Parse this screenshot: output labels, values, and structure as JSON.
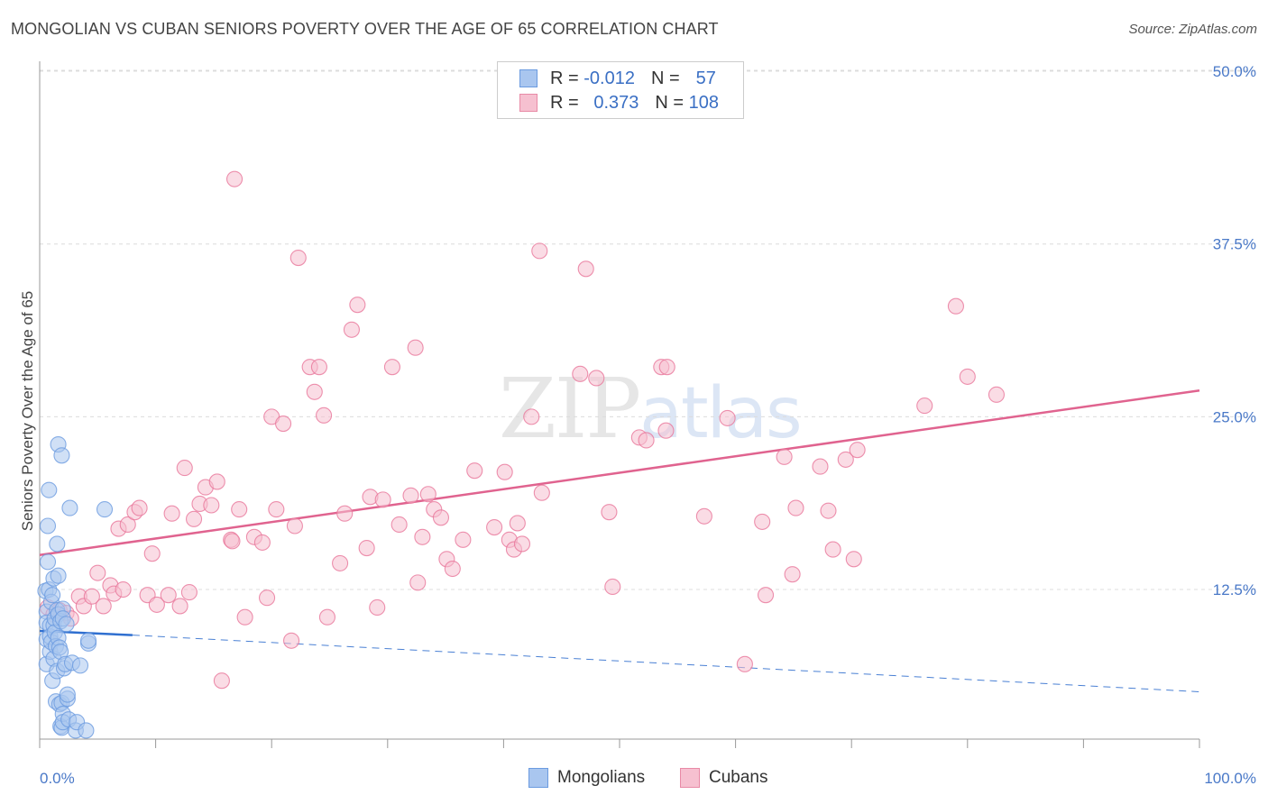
{
  "title": "MONGOLIAN VS CUBAN SENIORS POVERTY OVER THE AGE OF 65 CORRELATION CHART",
  "source": "Source: ZipAtlas.com",
  "watermark": {
    "zip": "ZIP",
    "atlas": "atlas"
  },
  "legend": {
    "rows": [
      {
        "r_label": "R =",
        "r_value": "-0.012",
        "n_label": "N =",
        "n_value": "57",
        "color": "#a9c6ef",
        "border": "#6b9be0"
      },
      {
        "r_label": "R =",
        "r_value": "0.373",
        "n_label": "N =",
        "n_value": "108",
        "color": "#f6c0d0",
        "border": "#e88aa6"
      }
    ]
  },
  "bottom_legend": [
    {
      "label": "Mongolians",
      "color": "#a9c6ef",
      "border": "#6b9be0"
    },
    {
      "label": "Cubans",
      "color": "#f6c0d0",
      "border": "#e88aa6"
    }
  ],
  "chart_data": {
    "type": "scatter",
    "title": "MONGOLIAN VS CUBAN SENIORS POVERTY OVER THE AGE OF 65 CORRELATION CHART",
    "xlabel": "",
    "ylabel": "Seniors Poverty Over the Age of 65",
    "xlim": [
      0,
      100
    ],
    "ylim": [
      0,
      52
    ],
    "x_tick_labels": [
      "0.0%",
      "100.0%"
    ],
    "y_ticks": [
      12.5,
      25.0,
      37.5,
      50.0
    ],
    "y_tick_labels": [
      "12.5%",
      "25.0%",
      "37.5%",
      "50.0%"
    ],
    "grid": true,
    "series": [
      {
        "name": "Mongolians",
        "color": "#6b9be0",
        "fill": "#a9c6ef",
        "trend": {
          "x": [
            0,
            8,
            100
          ],
          "y": [
            9.5,
            9.2,
            5.1
          ],
          "solid_until": 8
        },
        "points": [
          [
            0.5,
            12.4
          ],
          [
            0.6,
            10.9
          ],
          [
            0.6,
            10.1
          ],
          [
            0.6,
            8.9
          ],
          [
            0.6,
            7.1
          ],
          [
            0.7,
            14.5
          ],
          [
            0.7,
            17.1
          ],
          [
            0.8,
            19.7
          ],
          [
            0.8,
            12.5
          ],
          [
            0.9,
            9.9
          ],
          [
            0.9,
            9.1
          ],
          [
            0.9,
            8.0
          ],
          [
            1.0,
            11.6
          ],
          [
            1.0,
            8.7
          ],
          [
            1.1,
            5.9
          ],
          [
            1.1,
            12.1
          ],
          [
            1.2,
            13.3
          ],
          [
            1.2,
            9.9
          ],
          [
            1.2,
            7.5
          ],
          [
            1.3,
            10.4
          ],
          [
            1.3,
            9.4
          ],
          [
            1.4,
            8.4
          ],
          [
            1.4,
            4.4
          ],
          [
            1.5,
            15.8
          ],
          [
            1.5,
            11.0
          ],
          [
            1.5,
            6.6
          ],
          [
            1.6,
            23.0
          ],
          [
            1.6,
            13.5
          ],
          [
            1.6,
            10.7
          ],
          [
            1.6,
            9.0
          ],
          [
            1.7,
            8.3
          ],
          [
            1.7,
            4.2
          ],
          [
            1.8,
            2.6
          ],
          [
            1.8,
            10.2
          ],
          [
            1.8,
            8.0
          ],
          [
            1.9,
            22.2
          ],
          [
            1.9,
            2.5
          ],
          [
            1.9,
            4.3
          ],
          [
            2.0,
            11.1
          ],
          [
            2.0,
            10.4
          ],
          [
            2.0,
            3.5
          ],
          [
            2.0,
            2.9
          ],
          [
            2.1,
            6.8
          ],
          [
            2.2,
            7.1
          ],
          [
            2.3,
            10.0
          ],
          [
            2.4,
            4.6
          ],
          [
            2.4,
            4.9
          ],
          [
            2.5,
            3.1
          ],
          [
            2.6,
            18.4
          ],
          [
            2.8,
            7.2
          ],
          [
            3.1,
            2.3
          ],
          [
            3.2,
            2.9
          ],
          [
            3.5,
            7.0
          ],
          [
            4.0,
            2.3
          ],
          [
            4.2,
            8.6
          ],
          [
            4.2,
            8.8
          ],
          [
            5.6,
            18.3
          ]
        ]
      },
      {
        "name": "Cubans",
        "color": "#e8759a",
        "fill": "#f6c0d0",
        "trend": {
          "x": [
            0,
            100
          ],
          "y": [
            15.0,
            26.9
          ]
        },
        "points": [
          [
            0.7,
            11.2
          ],
          [
            1.2,
            10.7
          ],
          [
            1.7,
            11.0
          ],
          [
            2.3,
            10.8
          ],
          [
            2.7,
            10.4
          ],
          [
            3.4,
            12.0
          ],
          [
            3.8,
            11.3
          ],
          [
            4.5,
            12.0
          ],
          [
            5.0,
            13.7
          ],
          [
            5.5,
            11.3
          ],
          [
            6.1,
            12.8
          ],
          [
            6.4,
            12.2
          ],
          [
            6.8,
            16.9
          ],
          [
            7.2,
            12.5
          ],
          [
            7.6,
            17.2
          ],
          [
            8.2,
            18.1
          ],
          [
            8.6,
            18.4
          ],
          [
            9.3,
            12.1
          ],
          [
            9.7,
            15.1
          ],
          [
            10.1,
            11.4
          ],
          [
            11.1,
            12.1
          ],
          [
            11.4,
            18.0
          ],
          [
            12.1,
            11.3
          ],
          [
            12.5,
            21.3
          ],
          [
            12.9,
            12.3
          ],
          [
            13.3,
            17.6
          ],
          [
            13.8,
            18.7
          ],
          [
            14.3,
            19.9
          ],
          [
            14.8,
            18.6
          ],
          [
            15.3,
            20.3
          ],
          [
            15.7,
            5.9
          ],
          [
            16.5,
            16.1
          ],
          [
            16.8,
            42.2
          ],
          [
            17.2,
            18.3
          ],
          [
            17.7,
            10.5
          ],
          [
            18.5,
            16.3
          ],
          [
            19.2,
            15.9
          ],
          [
            19.6,
            11.9
          ],
          [
            20.0,
            25.0
          ],
          [
            20.4,
            18.3
          ],
          [
            21.0,
            24.5
          ],
          [
            21.7,
            8.8
          ],
          [
            22.0,
            17.1
          ],
          [
            22.3,
            36.5
          ],
          [
            23.3,
            28.6
          ],
          [
            23.7,
            26.8
          ],
          [
            24.1,
            28.6
          ],
          [
            24.5,
            25.1
          ],
          [
            24.8,
            10.5
          ],
          [
            25.9,
            14.4
          ],
          [
            26.3,
            18.0
          ],
          [
            26.9,
            31.3
          ],
          [
            27.4,
            33.1
          ],
          [
            28.2,
            15.5
          ],
          [
            28.5,
            19.2
          ],
          [
            29.1,
            11.2
          ],
          [
            29.6,
            19.0
          ],
          [
            30.4,
            28.6
          ],
          [
            31.0,
            17.2
          ],
          [
            32.0,
            19.3
          ],
          [
            32.4,
            30.0
          ],
          [
            32.6,
            13.0
          ],
          [
            33.0,
            16.3
          ],
          [
            33.5,
            19.4
          ],
          [
            34.0,
            18.3
          ],
          [
            34.6,
            17.7
          ],
          [
            35.1,
            14.7
          ],
          [
            35.6,
            14.0
          ],
          [
            36.5,
            16.1
          ],
          [
            37.5,
            21.1
          ],
          [
            39.2,
            17.0
          ],
          [
            40.1,
            21.0
          ],
          [
            40.5,
            16.1
          ],
          [
            40.9,
            15.4
          ],
          [
            41.2,
            17.3
          ],
          [
            41.6,
            15.8
          ],
          [
            42.4,
            25.0
          ],
          [
            43.1,
            37.0
          ],
          [
            43.3,
            19.5
          ],
          [
            46.6,
            28.1
          ],
          [
            47.1,
            35.7
          ],
          [
            48.0,
            27.8
          ],
          [
            49.1,
            18.1
          ],
          [
            49.4,
            12.7
          ],
          [
            51.7,
            23.5
          ],
          [
            52.3,
            23.3
          ],
          [
            53.6,
            28.6
          ],
          [
            54.1,
            28.6
          ],
          [
            54.0,
            24.0
          ],
          [
            57.3,
            17.8
          ],
          [
            59.3,
            24.9
          ],
          [
            60.8,
            7.1
          ],
          [
            62.3,
            17.4
          ],
          [
            62.6,
            12.1
          ],
          [
            64.2,
            22.1
          ],
          [
            64.9,
            13.6
          ],
          [
            65.2,
            18.4
          ],
          [
            67.3,
            21.4
          ],
          [
            68.0,
            18.2
          ],
          [
            68.4,
            15.4
          ],
          [
            69.5,
            21.9
          ],
          [
            70.2,
            14.7
          ],
          [
            70.5,
            22.6
          ],
          [
            76.3,
            25.8
          ],
          [
            79.0,
            33.0
          ],
          [
            80.0,
            27.9
          ],
          [
            82.5,
            26.6
          ],
          [
            16.6,
            16.0
          ]
        ]
      }
    ]
  }
}
